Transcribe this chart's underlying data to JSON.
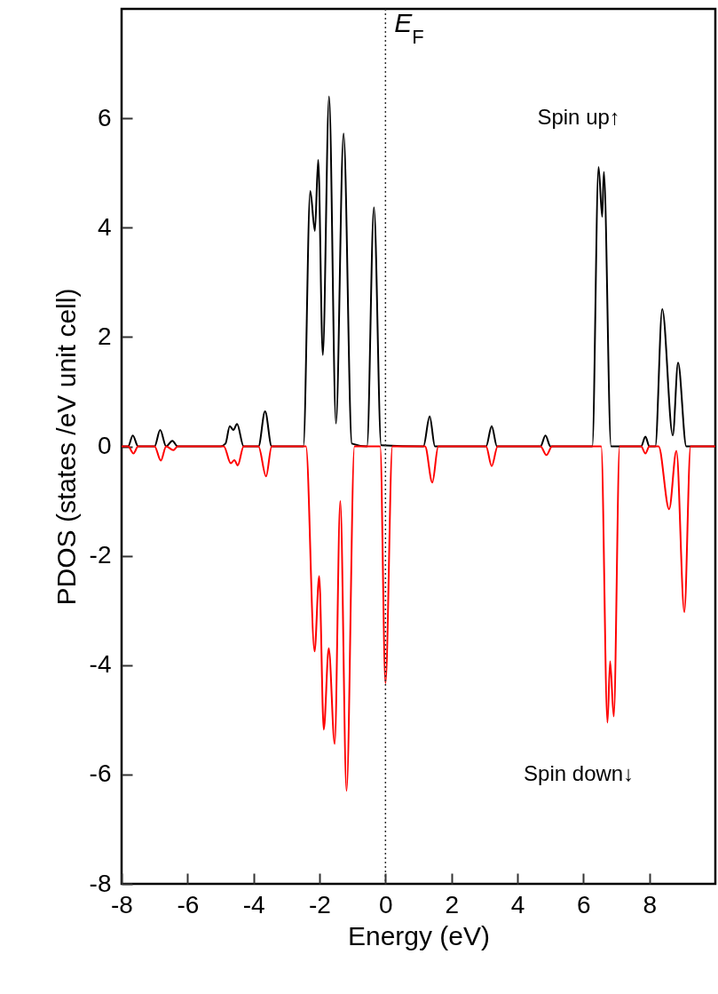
{
  "chart_data": {
    "type": "line",
    "xlabel": "Energy (eV)",
    "ylabel": "PDOS (states /eV unit cell)",
    "xlim": [
      -8,
      10
    ],
    "ylim": [
      -8,
      8
    ],
    "xticks": [
      -8,
      -6,
      -4,
      -2,
      0,
      2,
      4,
      6,
      8
    ],
    "yticks": [
      -8,
      -6,
      -4,
      -2,
      0,
      2,
      4,
      6
    ],
    "grid": false,
    "legend": false,
    "marker": "none",
    "line_style": "solid",
    "series": [
      {
        "name": "Spin up↑",
        "color": "#000000",
        "x": [
          -8,
          -7.8,
          -7.66,
          -7.5,
          -7.0,
          -6.83,
          -6.65,
          -6.46,
          -6.3,
          -5.0,
          -4.85,
          -4.72,
          -4.61,
          -4.5,
          -4.3,
          -3.85,
          -3.65,
          -3.45,
          -2.49,
          -2.28,
          -2.14,
          -2.04,
          -1.9,
          -1.71,
          -1.5,
          -1.27,
          -1.02,
          -0.56,
          -0.35,
          -0.13,
          1.15,
          1.34,
          1.5,
          3.05,
          3.22,
          3.38,
          4.7,
          4.85,
          5.0,
          6.27,
          6.46,
          6.57,
          6.62,
          6.84,
          7.75,
          7.88,
          8.0,
          8.18,
          8.39,
          8.71,
          8.87,
          9.12,
          10
        ],
        "values": [
          0,
          0,
          0.2,
          0,
          0,
          0.3,
          0,
          0.1,
          0,
          0,
          0.05,
          0.37,
          0.3,
          0.41,
          0,
          0,
          0.64,
          0,
          0,
          4.67,
          3.94,
          5.24,
          1.67,
          6.4,
          0.42,
          5.72,
          0.05,
          0,
          4.37,
          0.02,
          0,
          0.55,
          0,
          0,
          0.37,
          0,
          0,
          0.2,
          0,
          0,
          5.11,
          4.2,
          5.02,
          0,
          0,
          0.18,
          0,
          0,
          2.51,
          0.2,
          1.53,
          0,
          0
        ]
      },
      {
        "name": "Spin down↓",
        "color": "#ff0000",
        "x": [
          -8,
          -7.8,
          -7.64,
          -7.5,
          -7.0,
          -6.81,
          -6.65,
          -6.43,
          -6.3,
          -4.9,
          -4.69,
          -4.58,
          -4.48,
          -4.3,
          -3.85,
          -3.62,
          -3.45,
          -2.41,
          -2.15,
          -2.01,
          -1.87,
          -1.72,
          -1.54,
          -1.37,
          -1.18,
          -0.94,
          -0.16,
          0.0,
          0.21,
          1.2,
          1.42,
          1.6,
          3.05,
          3.22,
          3.4,
          4.7,
          4.88,
          5.05,
          6.54,
          6.73,
          6.81,
          6.92,
          7.1,
          7.75,
          7.88,
          8.0,
          8.28,
          8.6,
          8.82,
          9.06,
          9.25,
          10
        ],
        "values": [
          0,
          0,
          -0.13,
          0,
          0,
          -0.26,
          0,
          -0.07,
          0,
          0,
          -0.31,
          -0.25,
          -0.35,
          0,
          0,
          -0.55,
          0,
          0,
          -3.75,
          -2.37,
          -5.18,
          -3.69,
          -5.44,
          -1.0,
          -6.3,
          0,
          0,
          -4.33,
          0,
          0,
          -0.66,
          0,
          0,
          -0.36,
          0,
          0,
          -0.16,
          0,
          0,
          -5.05,
          -3.93,
          -4.94,
          0,
          0,
          -0.13,
          0,
          0,
          -1.15,
          -0.08,
          -3.03,
          0,
          0
        ]
      }
    ],
    "ref_lines": [
      {
        "axis": "x",
        "value": 0,
        "label": "E$_{F}$",
        "color": "#333333",
        "line_style": "dotted"
      }
    ]
  }
}
